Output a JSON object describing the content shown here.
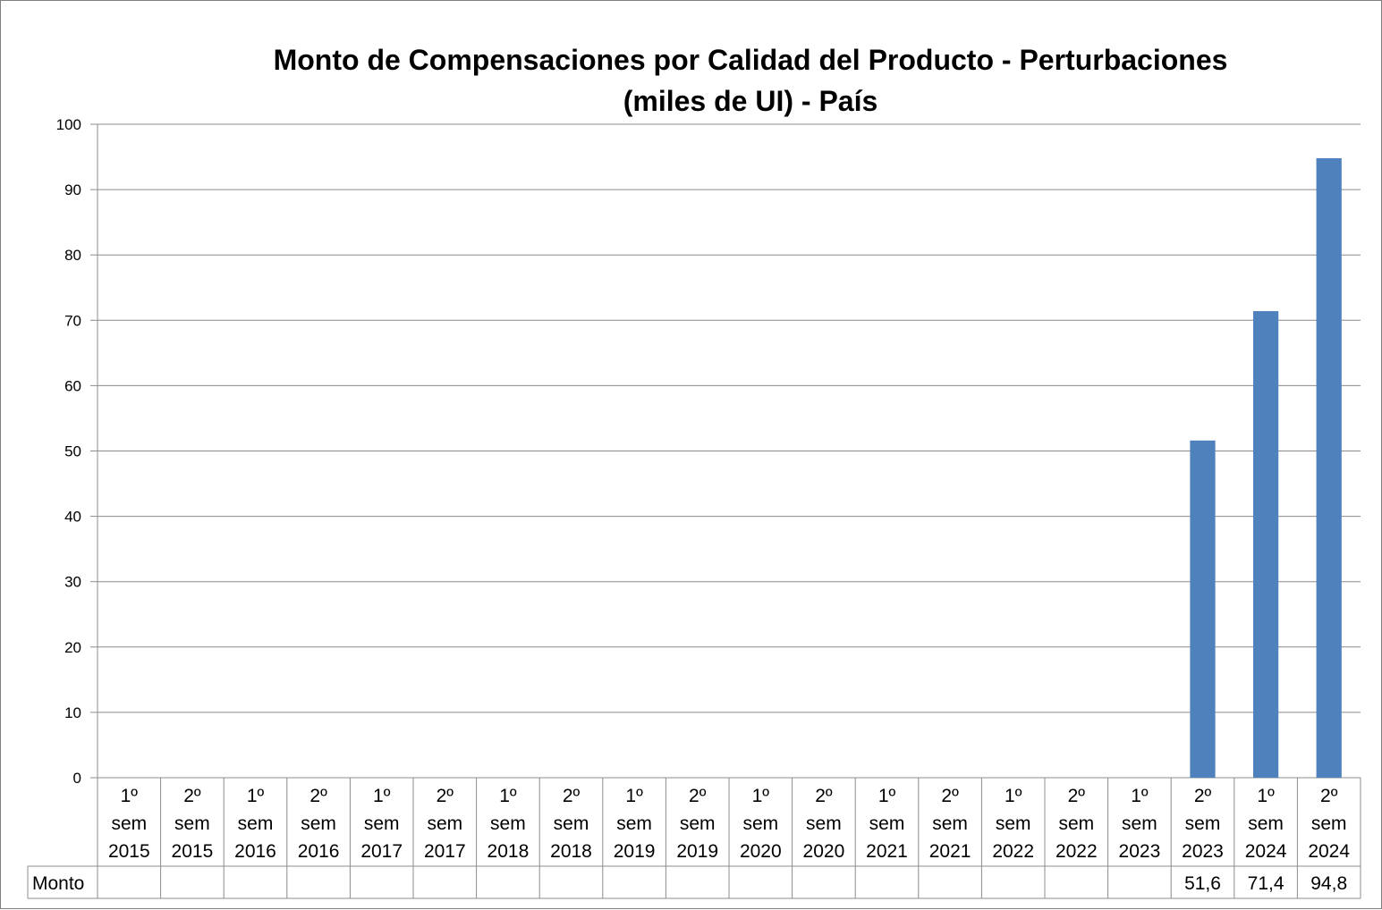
{
  "chart_data": {
    "type": "bar",
    "title_lines": [
      "Monto de Compensaciones por Calidad del Producto - Perturbaciones",
      "(miles de UI) - País"
    ],
    "xlabel": "",
    "ylabel": "",
    "ylim": [
      0,
      100
    ],
    "yticks": [
      "0",
      "10",
      "20",
      "30",
      "40",
      "50",
      "60",
      "70",
      "80",
      "90",
      "100"
    ],
    "grid": true,
    "categories": [
      [
        "1º",
        "sem",
        "2015"
      ],
      [
        "2º",
        "sem",
        "2015"
      ],
      [
        "1º",
        "sem",
        "2016"
      ],
      [
        "2º",
        "sem",
        "2016"
      ],
      [
        "1º",
        "sem",
        "2017"
      ],
      [
        "2º",
        "sem",
        "2017"
      ],
      [
        "1º",
        "sem",
        "2018"
      ],
      [
        "2º",
        "sem",
        "2018"
      ],
      [
        "1º",
        "sem",
        "2019"
      ],
      [
        "2º",
        "sem",
        "2019"
      ],
      [
        "1º",
        "sem",
        "2020"
      ],
      [
        "2º",
        "sem",
        "2020"
      ],
      [
        "1º",
        "sem",
        "2021"
      ],
      [
        "2º",
        "sem",
        "2021"
      ],
      [
        "1º",
        "sem",
        "2022"
      ],
      [
        "2º",
        "sem",
        "2022"
      ],
      [
        "1º",
        "sem",
        "2023"
      ],
      [
        "2º",
        "sem",
        "2023"
      ],
      [
        "1º",
        "sem",
        "2024"
      ],
      [
        "2º",
        "sem",
        "2024"
      ]
    ],
    "series": [
      {
        "name": "Monto",
        "values": [
          null,
          null,
          null,
          null,
          null,
          null,
          null,
          null,
          null,
          null,
          null,
          null,
          null,
          null,
          null,
          null,
          null,
          51.6,
          71.4,
          94.8
        ],
        "labels": [
          "",
          "",
          "",
          "",
          "",
          "",
          "",
          "",
          "",
          "",
          "",
          "",
          "",
          "",
          "",
          "",
          "",
          "51,6",
          "71,4",
          "94,8"
        ],
        "color": "#4f81bd"
      }
    ],
    "data_table": true
  }
}
